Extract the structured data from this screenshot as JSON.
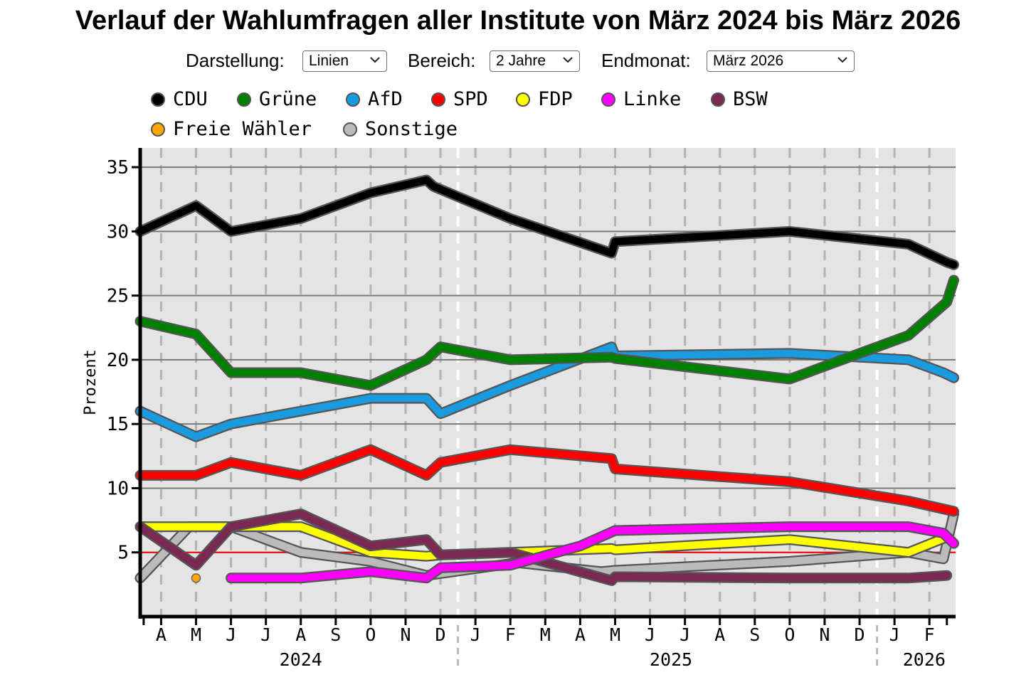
{
  "title": "Verlauf der Wahlumfragen aller Institute von März 2024 bis März 2026",
  "controls": {
    "darstellung_label": "Darstellung:",
    "darstellung_value": "Linien",
    "bereich_label": "Bereich:",
    "bereich_value": "2 Jahre",
    "endmonat_label": "Endmonat:",
    "endmonat_value": "März 2026"
  },
  "chart_data": {
    "type": "line",
    "title": "Verlauf der Wahlumfragen aller Institute von März 2024 bis März 2026",
    "xlabel": "",
    "ylabel": "Prozent",
    "ylim": [
      0,
      36.5
    ],
    "yticks": [
      5,
      10,
      15,
      20,
      25,
      30,
      35
    ],
    "x_unit": "months since March 2024",
    "xlim": [
      0.4,
      23.75
    ],
    "grid": true,
    "threshold": {
      "value": 5,
      "color": "#ff0000"
    },
    "months": [
      {
        "label": "A",
        "x": 1
      },
      {
        "label": "M",
        "x": 2
      },
      {
        "label": "J",
        "x": 3
      },
      {
        "label": "J",
        "x": 4
      },
      {
        "label": "A",
        "x": 5
      },
      {
        "label": "S",
        "x": 6
      },
      {
        "label": "O",
        "x": 7
      },
      {
        "label": "N",
        "x": 8
      },
      {
        "label": "D",
        "x": 9
      },
      {
        "label": "J",
        "x": 10
      },
      {
        "label": "F",
        "x": 11
      },
      {
        "label": "M",
        "x": 12
      },
      {
        "label": "A",
        "x": 13
      },
      {
        "label": "M",
        "x": 14
      },
      {
        "label": "J",
        "x": 15
      },
      {
        "label": "J",
        "x": 16
      },
      {
        "label": "A",
        "x": 17
      },
      {
        "label": "S",
        "x": 18
      },
      {
        "label": "O",
        "x": 19
      },
      {
        "label": "N",
        "x": 20
      },
      {
        "label": "D",
        "x": 21
      },
      {
        "label": "J",
        "x": 22
      },
      {
        "label": "F",
        "x": 23
      }
    ],
    "years": [
      {
        "label": "2024",
        "x": 5.0
      },
      {
        "label": "2025",
        "x": 15.6
      },
      {
        "label": "2026",
        "x": 22.85
      }
    ],
    "year_boundaries": [
      9.5,
      21.5
    ],
    "series": [
      {
        "name": "Sonstige",
        "color": "#bbbbbb",
        "x": [
          0.4,
          1.8,
          3,
          5,
          7,
          8.6,
          11.2,
          13.6,
          14,
          19,
          22.4,
          23.4,
          23.7
        ],
        "y": [
          3,
          7,
          7,
          5,
          4.3,
          3.2,
          4.2,
          3.5,
          3.6,
          4.3,
          5,
          4.5,
          8
        ]
      },
      {
        "name": "Freie Wähler",
        "color": "#ffa500",
        "x": [
          2
        ],
        "y": [
          3
        ]
      },
      {
        "name": "FDP",
        "color": "#ffff00",
        "x": [
          0.4,
          2,
          3,
          5,
          7,
          8.6,
          9,
          11,
          13.9,
          14,
          19,
          22.4,
          23.5
        ],
        "y": [
          7,
          7,
          7,
          7,
          5,
          4.7,
          4.8,
          5,
          5.3,
          5.2,
          6,
          5,
          6.2
        ]
      },
      {
        "name": "BSW",
        "color": "#7a2a52",
        "x": [
          0.4,
          2,
          3,
          5,
          7,
          8.6,
          9,
          11,
          13.9,
          14,
          19,
          22.4,
          23.5
        ],
        "y": [
          7,
          4,
          7,
          8,
          5.5,
          6,
          4.8,
          5,
          2.8,
          3.1,
          3,
          3,
          3.2
        ]
      },
      {
        "name": "Linke",
        "color": "#ff00ff",
        "x": [
          3,
          5,
          7,
          8.6,
          9,
          11,
          13,
          14,
          19,
          22.4,
          23.4,
          23.7
        ],
        "y": [
          3,
          3,
          3.5,
          3,
          3.8,
          4,
          5.5,
          6.7,
          7,
          7,
          6.5,
          5.7
        ]
      },
      {
        "name": "SPD",
        "color": "#ff0000",
        "x": [
          0.4,
          2,
          3,
          5,
          7,
          8.6,
          9,
          11,
          13.9,
          14,
          19,
          22.4,
          23.7
        ],
        "y": [
          11,
          11,
          12,
          11,
          13,
          11,
          12,
          13,
          12.3,
          11.5,
          10.5,
          9,
          8.2
        ]
      },
      {
        "name": "AfD",
        "color": "#1a9be0",
        "x": [
          0.4,
          2,
          3,
          5,
          7,
          8.6,
          9,
          11,
          13.9,
          14,
          19,
          22.4,
          23.4,
          23.7
        ],
        "y": [
          16,
          14,
          15,
          16,
          17,
          17,
          15.8,
          18,
          21,
          20.3,
          20.5,
          20,
          19,
          18.6
        ]
      },
      {
        "name": "Grüne",
        "color": "#008000",
        "x": [
          0.4,
          2,
          3,
          5,
          7,
          8.6,
          9,
          11,
          13.9,
          14,
          19,
          22.4,
          23.5,
          23.7
        ],
        "y": [
          23,
          22,
          19,
          19,
          18,
          20,
          21,
          20,
          20.2,
          20.1,
          18.5,
          21.9,
          24.5,
          26.2
        ]
      },
      {
        "name": "CDU",
        "color": "#000000",
        "x": [
          0.4,
          2,
          3,
          5,
          7,
          8.6,
          8.8,
          11,
          13.9,
          14,
          19,
          22.4,
          23.5,
          23.7
        ],
        "y": [
          30,
          32,
          30,
          31,
          33,
          34,
          33.5,
          31,
          28.3,
          29.2,
          30,
          29,
          27.6,
          27.4
        ]
      }
    ]
  },
  "legend": [
    {
      "name": "CDU",
      "color": "#000000"
    },
    {
      "name": "Grüne",
      "color": "#008000"
    },
    {
      "name": "AfD",
      "color": "#1a9be0"
    },
    {
      "name": "SPD",
      "color": "#ff0000"
    },
    {
      "name": "FDP",
      "color": "#ffff00"
    },
    {
      "name": "Linke",
      "color": "#ff00ff"
    },
    {
      "name": "BSW",
      "color": "#7a2a52"
    },
    {
      "name": "Freie Wähler",
      "color": "#ffa500"
    },
    {
      "name": "Sonstige",
      "color": "#bbbbbb"
    }
  ]
}
